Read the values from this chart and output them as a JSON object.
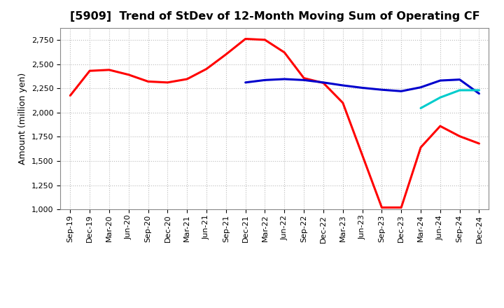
{
  "title": "[5909]  Trend of StDev of 12-Month Moving Sum of Operating CF",
  "ylabel": "Amount (million yen)",
  "ylim": [
    1000,
    2875
  ],
  "yticks": [
    1000,
    1250,
    1500,
    1750,
    2000,
    2250,
    2500,
    2750
  ],
  "x_labels": [
    "Sep-19",
    "Dec-19",
    "Mar-20",
    "Jun-20",
    "Sep-20",
    "Dec-20",
    "Mar-21",
    "Jun-21",
    "Sep-21",
    "Dec-21",
    "Mar-22",
    "Jun-22",
    "Sep-22",
    "Dec-22",
    "Mar-23",
    "Jun-23",
    "Sep-23",
    "Dec-23",
    "Mar-24",
    "Jun-24",
    "Sep-24",
    "Dec-24"
  ],
  "series_3y": {
    "color": "#FF0000",
    "data": [
      2175,
      2430,
      2440,
      2390,
      2320,
      2310,
      2345,
      2450,
      2600,
      2760,
      2750,
      2620,
      2355,
      2305,
      2100,
      1560,
      1020,
      1020,
      1640,
      1860,
      1755,
      1680
    ]
  },
  "series_5y": {
    "color": "#0000CD",
    "data": [
      null,
      null,
      null,
      null,
      null,
      null,
      null,
      null,
      null,
      2310,
      2335,
      2345,
      2335,
      2310,
      2280,
      2255,
      2235,
      2220,
      2260,
      2330,
      2340,
      2195
    ]
  },
  "series_7y": {
    "color": "#00CCCC",
    "data": [
      null,
      null,
      null,
      null,
      null,
      null,
      null,
      null,
      null,
      null,
      null,
      null,
      null,
      null,
      null,
      null,
      null,
      null,
      2045,
      2155,
      2230,
      2230
    ]
  },
  "series_10y": {
    "color": "#006400",
    "data": [
      null,
      null,
      null,
      null,
      null,
      null,
      null,
      null,
      null,
      null,
      null,
      null,
      null,
      null,
      null,
      null,
      null,
      null,
      null,
      null,
      null,
      null
    ]
  },
  "background_color": "#FFFFFF",
  "plot_bg_color": "#FFFFFF",
  "grid_color": "#BBBBBB",
  "title_fontsize": 11.5,
  "tick_fontsize": 8,
  "ylabel_fontsize": 9
}
